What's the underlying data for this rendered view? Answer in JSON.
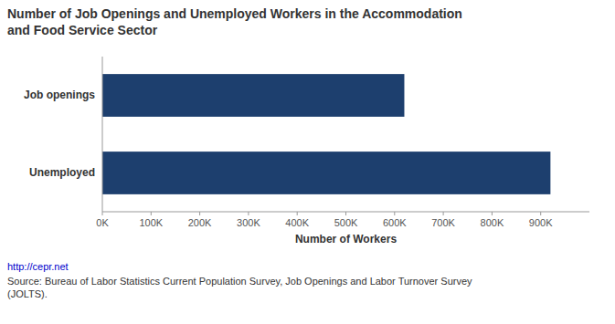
{
  "chart_data": {
    "type": "bar",
    "orientation": "horizontal",
    "title": "Number of Job Openings and Unemployed Workers in the Accommodation\nand Food Service Sector",
    "categories": [
      "Job openings",
      "Unemployed"
    ],
    "values": [
      620000,
      920000
    ],
    "color": "#1d3f6e",
    "xlabel": "Number of Workers",
    "xlim": [
      0,
      1000000
    ],
    "xticks": [
      {
        "value": 0,
        "label": "0K"
      },
      {
        "value": 100000,
        "label": "100K"
      },
      {
        "value": 200000,
        "label": "200K"
      },
      {
        "value": 300000,
        "label": "300K"
      },
      {
        "value": 400000,
        "label": "400K"
      },
      {
        "value": 500000,
        "label": "500K"
      },
      {
        "value": 600000,
        "label": "600K"
      },
      {
        "value": 700000,
        "label": "700K"
      },
      {
        "value": 800000,
        "label": "800K"
      },
      {
        "value": 900000,
        "label": "900K"
      }
    ],
    "grid": false,
    "annotations": [
      "http://cepr.net",
      "Source: Bureau of Labor Statistics Current Population Survey, Job Openings and Labor Turnover Survey\n(JOLTS)."
    ]
  }
}
